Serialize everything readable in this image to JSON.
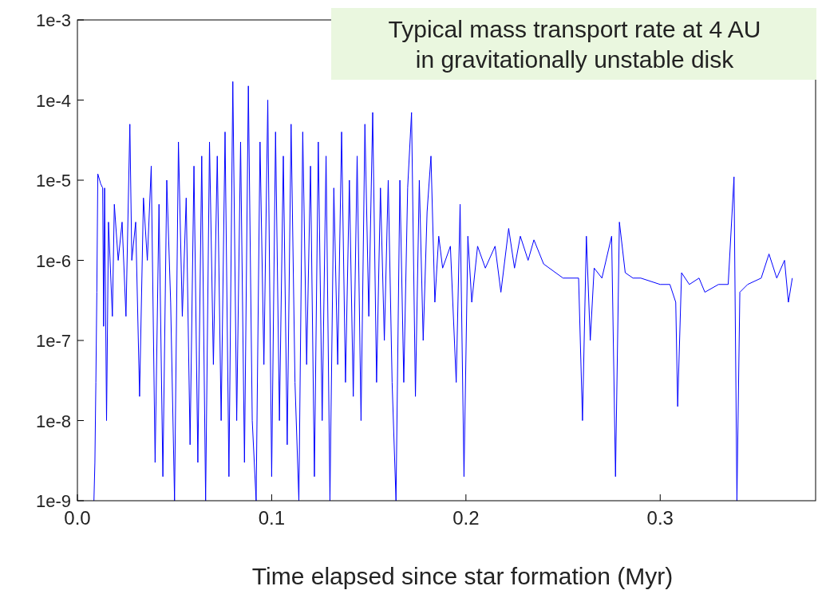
{
  "chart_data": {
    "type": "line",
    "xlabel": "Time elapsed since star formation (Myr)",
    "log": "y",
    "grid": false,
    "marker": "none",
    "line_style": "solid",
    "annotations": [
      "Typical mass transport rate at 4 AU in gravitationally unstable disk"
    ],
    "xlim": [
      0,
      0.38
    ],
    "xticks": [
      {
        "value": 0,
        "label": "0.0"
      },
      0.1,
      0.2,
      0.3
    ],
    "ylim": [
      1e-09,
      0.001
    ],
    "yticks": [
      {
        "value": 1e-09,
        "label": "1e-9"
      },
      {
        "value": 1e-08,
        "label": "1e-8"
      },
      {
        "value": 1e-07,
        "label": "1e-7"
      },
      {
        "value": 1e-06,
        "label": "1e-6"
      },
      {
        "value": 1e-05,
        "label": "1e-5"
      },
      {
        "value": 0.0001,
        "label": "1e-4"
      },
      {
        "value": 0.001,
        "label": "1e-3"
      }
    ],
    "x": [
      0.0085,
      0.009,
      0.0095,
      0.01,
      0.0105,
      0.012,
      0.013,
      0.0135,
      0.014,
      0.015,
      0.016,
      0.018,
      0.019,
      0.021,
      0.023,
      0.025,
      0.027,
      0.028,
      0.03,
      0.032,
      0.034,
      0.036,
      0.038,
      0.04,
      0.042,
      0.044,
      0.046,
      0.048,
      0.05,
      0.052,
      0.054,
      0.056,
      0.058,
      0.06,
      0.062,
      0.064,
      0.066,
      0.068,
      0.07,
      0.072,
      0.074,
      0.076,
      0.078,
      0.08,
      0.082,
      0.084,
      0.086,
      0.088,
      0.09,
      0.092,
      0.094,
      0.096,
      0.098,
      0.1,
      0.102,
      0.104,
      0.106,
      0.108,
      0.11,
      0.112,
      0.114,
      0.116,
      0.118,
      0.12,
      0.122,
      0.124,
      0.126,
      0.128,
      0.13,
      0.132,
      0.134,
      0.136,
      0.138,
      0.14,
      0.142,
      0.144,
      0.146,
      0.148,
      0.15,
      0.152,
      0.154,
      0.156,
      0.158,
      0.16,
      0.162,
      0.164,
      0.166,
      0.168,
      0.17,
      0.172,
      0.174,
      0.176,
      0.178,
      0.18,
      0.182,
      0.184,
      0.186,
      0.188,
      0.192,
      0.195,
      0.197,
      0.199,
      0.201,
      0.203,
      0.206,
      0.21,
      0.215,
      0.218,
      0.222,
      0.225,
      0.228,
      0.232,
      0.235,
      0.24,
      0.25,
      0.258,
      0.26,
      0.262,
      0.264,
      0.266,
      0.27,
      0.275,
      0.277,
      0.279,
      0.282,
      0.286,
      0.29,
      0.3,
      0.305,
      0.308,
      0.309,
      0.311,
      0.315,
      0.32,
      0.323,
      0.33,
      0.335,
      0.338,
      0.3395,
      0.341,
      0.345,
      0.352,
      0.356,
      0.36,
      0.364,
      0.366,
      0.368
    ],
    "series": [
      {
        "color": "#0000ff",
        "values": [
          1e-09,
          3e-09,
          3e-08,
          4e-07,
          1.2e-05,
          9e-06,
          8e-06,
          1.5e-07,
          8e-06,
          1e-08,
          3e-06,
          2e-07,
          5e-06,
          1e-06,
          3e-06,
          2e-07,
          5e-05,
          1e-06,
          3e-06,
          2e-08,
          6e-06,
          1e-06,
          1.5e-05,
          3e-09,
          5e-06,
          2e-09,
          1e-05,
          3e-07,
          1e-09,
          3e-05,
          2e-07,
          6e-06,
          5e-09,
          1.5e-05,
          3e-09,
          2e-05,
          1e-09,
          3e-05,
          5e-08,
          2e-05,
          1e-08,
          4e-05,
          2e-09,
          0.00017,
          1e-08,
          3e-05,
          3e-09,
          0.00015,
          1e-08,
          1e-09,
          3e-05,
          5e-08,
          0.0001,
          2e-09,
          4e-05,
          1e-08,
          2e-05,
          5e-09,
          5e-05,
          3e-08,
          1e-09,
          4e-05,
          5e-08,
          1.5e-05,
          2e-09,
          3e-05,
          1e-08,
          2e-05,
          1e-09,
          8e-06,
          5e-08,
          4e-05,
          3e-08,
          1e-05,
          2e-08,
          2e-05,
          1e-08,
          5e-05,
          2e-07,
          7e-05,
          3e-08,
          8e-06,
          1e-07,
          1e-05,
          3e-08,
          1e-09,
          1e-05,
          3e-08,
          8e-06,
          7e-05,
          2e-08,
          1e-05,
          1e-07,
          4e-06,
          2e-05,
          3e-07,
          2e-06,
          8e-07,
          1.5e-06,
          3e-08,
          5e-06,
          2e-09,
          2e-06,
          3e-07,
          1.5e-06,
          8e-07,
          1.5e-06,
          4e-07,
          2.5e-06,
          8e-07,
          2e-06,
          1e-06,
          1.8e-06,
          9e-07,
          6e-07,
          6e-07,
          1e-08,
          2e-06,
          1e-07,
          8e-07,
          6e-07,
          2e-06,
          2e-09,
          3e-06,
          7e-07,
          6e-07,
          6e-07,
          5e-07,
          5e-07,
          3e-07,
          1.5e-08,
          7e-07,
          5e-07,
          6e-07,
          4e-07,
          5e-07,
          5e-07,
          1.1e-05,
          1e-09,
          4e-07,
          5e-07,
          6e-07,
          1.2e-06,
          6e-07,
          1e-06,
          3e-07,
          6e-07
        ]
      }
    ]
  }
}
